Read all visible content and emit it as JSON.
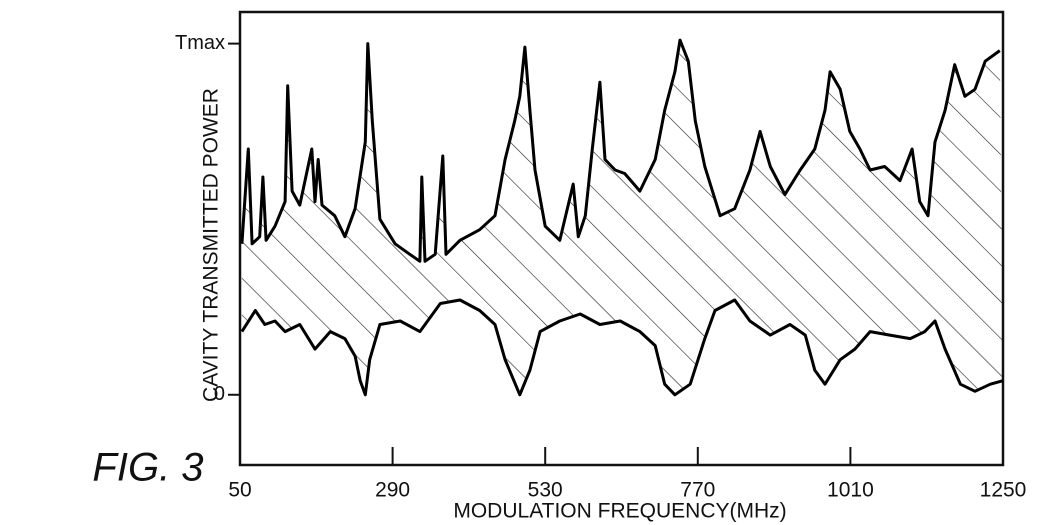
{
  "chart_data": {
    "type": "line",
    "annotation": "FIG. 3",
    "xlabel": "MODULATION FREQUENCY(MHz)",
    "ylabel": "CAVITY TRANSMITTED POWER",
    "xlim": [
      50,
      1250
    ],
    "xticks": [
      50,
      290,
      530,
      770,
      1010,
      1250
    ],
    "ylim": [
      -0.2,
      1.09
    ],
    "yticks": [
      0,
      {
        "value": 1,
        "label": "Tmax"
      }
    ],
    "fill_between": true,
    "series": [
      {
        "color": "#000000",
        "x": [
          53,
          63,
          69,
          81,
          86,
          91,
          105,
          121,
          125,
          132,
          144,
          163,
          168,
          173,
          179,
          199,
          215,
          231,
          247,
          251,
          258,
          270,
          294,
          317,
          333,
          336,
          341,
          357,
          369,
          374,
          396,
          427,
          451,
          467,
          482,
          490,
          498,
          506,
          514,
          530,
          553,
          574,
          582,
          593,
          604,
          616,
          624,
          640,
          655,
          679,
          703,
          718,
          734,
          742,
          755,
          766,
          781,
          805,
          828,
          852,
          868,
          884,
          907,
          931,
          954,
          970,
          978,
          994,
          1009,
          1025,
          1041,
          1064,
          1088,
          1107,
          1119,
          1132,
          1143,
          1159,
          1174,
          1190,
          1206,
          1222,
          1245
        ],
        "values": [
          0.43,
          0.7,
          0.43,
          0.45,
          0.62,
          0.44,
          0.48,
          0.55,
          0.88,
          0.58,
          0.54,
          0.7,
          0.55,
          0.67,
          0.54,
          0.51,
          0.45,
          0.53,
          0.72,
          1.0,
          0.78,
          0.5,
          0.43,
          0.4,
          0.38,
          0.62,
          0.38,
          0.4,
          0.68,
          0.4,
          0.44,
          0.47,
          0.51,
          0.67,
          0.78,
          0.85,
          0.99,
          0.81,
          0.64,
          0.48,
          0.44,
          0.6,
          0.45,
          0.51,
          0.7,
          0.89,
          0.67,
          0.64,
          0.63,
          0.58,
          0.67,
          0.81,
          0.92,
          1.01,
          0.95,
          0.78,
          0.65,
          0.51,
          0.53,
          0.64,
          0.75,
          0.65,
          0.57,
          0.64,
          0.7,
          0.81,
          0.92,
          0.87,
          0.75,
          0.7,
          0.64,
          0.65,
          0.61,
          0.7,
          0.55,
          0.51,
          0.72,
          0.81,
          0.94,
          0.85,
          0.87,
          0.95,
          0.98
        ]
      },
      {
        "color": "#000000",
        "x": [
          53,
          74,
          89,
          105,
          121,
          144,
          168,
          192,
          215,
          231,
          239,
          247,
          254,
          270,
          302,
          333,
          365,
          396,
          427,
          451,
          467,
          490,
          506,
          522,
          553,
          585,
          616,
          648,
          679,
          703,
          718,
          734,
          758,
          781,
          797,
          828,
          852,
          884,
          915,
          939,
          954,
          970,
          994,
          1017,
          1041,
          1072,
          1104,
          1127,
          1143,
          1159,
          1183,
          1206,
          1230,
          1250
        ],
        "values": [
          0.18,
          0.24,
          0.2,
          0.21,
          0.18,
          0.2,
          0.13,
          0.18,
          0.16,
          0.11,
          0.04,
          0.0,
          0.1,
          0.2,
          0.21,
          0.18,
          0.26,
          0.27,
          0.24,
          0.2,
          0.1,
          0.0,
          0.07,
          0.18,
          0.21,
          0.23,
          0.2,
          0.21,
          0.18,
          0.14,
          0.03,
          0.0,
          0.03,
          0.16,
          0.24,
          0.27,
          0.21,
          0.17,
          0.2,
          0.17,
          0.07,
          0.03,
          0.1,
          0.13,
          0.18,
          0.17,
          0.16,
          0.18,
          0.21,
          0.13,
          0.03,
          0.01,
          0.03,
          0.04
        ]
      }
    ]
  }
}
